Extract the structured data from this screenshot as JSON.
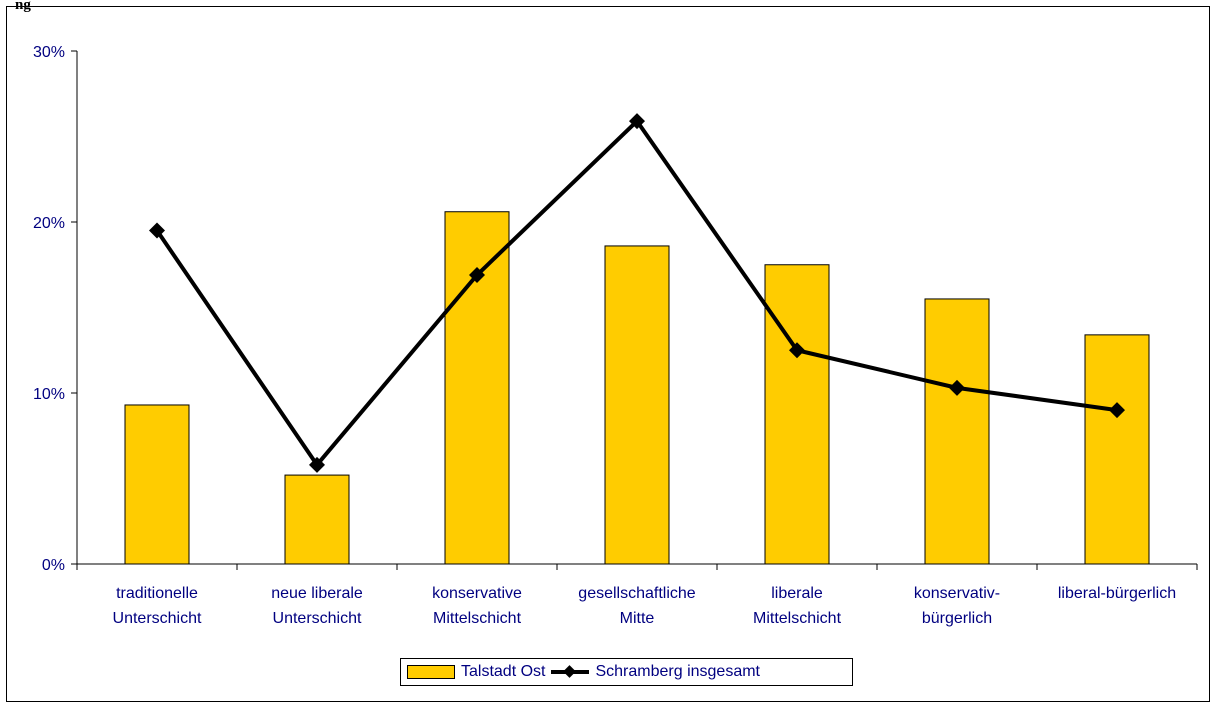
{
  "clipped_title": "ng",
  "chart_data": {
    "type": "bar",
    "categories": [
      [
        "traditionelle",
        "Unterschicht"
      ],
      [
        "neue liberale",
        "Unterschicht"
      ],
      [
        "konservative",
        "Mittelschicht"
      ],
      [
        "gesellschaftliche",
        "Mitte"
      ],
      [
        "liberale",
        "Mittelschicht"
      ],
      [
        "konservativ-",
        "bürgerlich"
      ],
      [
        "liberal-bürgerlich"
      ]
    ],
    "series": [
      {
        "name": "Talstadt Ost",
        "type": "bar",
        "color": "#ffcc00",
        "values": [
          9.3,
          5.2,
          20.6,
          18.6,
          17.5,
          15.5,
          13.4
        ]
      },
      {
        "name": "Schramberg insgesamt",
        "type": "line",
        "color": "#000000",
        "values": [
          19.5,
          5.8,
          16.9,
          25.9,
          12.5,
          10.3,
          9.0
        ]
      }
    ],
    "yticks": [
      "0%",
      "10%",
      "20%",
      "30%"
    ],
    "ylim": [
      0,
      30
    ],
    "legend_position": "bottom-center",
    "grid": false
  },
  "legend": {
    "series1": "Talstadt Ost",
    "series2": "Schramberg insgesamt"
  },
  "colors": {
    "axis_text": "#000080",
    "bar": "#ffcc00",
    "line": "#000000"
  }
}
